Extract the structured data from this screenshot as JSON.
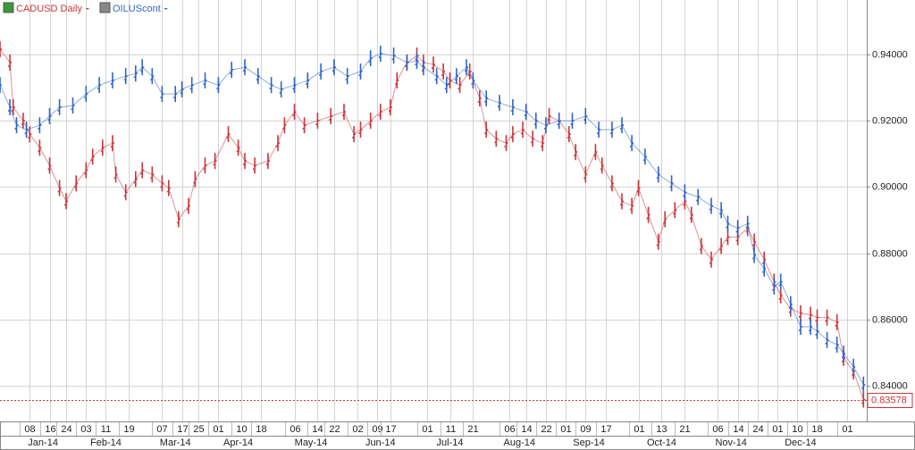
{
  "chart_data": {
    "type": "ohlc",
    "grid": true,
    "xlim": [
      0,
      262
    ],
    "ylim": [
      0.8292,
      0.9565
    ],
    "yticks": [
      {
        "value": 0.94,
        "label": "0.94000"
      },
      {
        "value": 0.92,
        "label": "0.92000"
      },
      {
        "value": 0.9,
        "label": "0.90000"
      },
      {
        "value": 0.88,
        "label": "0.88000"
      },
      {
        "value": 0.86,
        "label": "0.86000"
      },
      {
        "value": 0.84,
        "label": "0.84000"
      }
    ],
    "xticks": [
      {
        "value": 9,
        "label": "08"
      },
      {
        "value": 15,
        "label": "16"
      },
      {
        "value": 20,
        "label": "24"
      },
      {
        "value": 26,
        "label": "03"
      },
      {
        "value": 32,
        "label": "11"
      },
      {
        "value": 39,
        "label": "19"
      },
      {
        "value": 49,
        "label": "07"
      },
      {
        "value": 55,
        "label": "17"
      },
      {
        "value": 60,
        "label": "25"
      },
      {
        "value": 66,
        "label": "01"
      },
      {
        "value": 73,
        "label": "10"
      },
      {
        "value": 79,
        "label": "18"
      },
      {
        "value": 89,
        "label": "06"
      },
      {
        "value": 96,
        "label": "14"
      },
      {
        "value": 101,
        "label": "22"
      },
      {
        "value": 108,
        "label": "02"
      },
      {
        "value": 114,
        "label": "09"
      },
      {
        "value": 118,
        "label": "17"
      },
      {
        "value": 129,
        "label": "01"
      },
      {
        "value": 136,
        "label": "11"
      },
      {
        "value": 143,
        "label": "21"
      },
      {
        "value": 154,
        "label": "06"
      },
      {
        "value": 159,
        "label": "14"
      },
      {
        "value": 165,
        "label": "22"
      },
      {
        "value": 171,
        "label": "01"
      },
      {
        "value": 177,
        "label": "09"
      },
      {
        "value": 183,
        "label": "17"
      },
      {
        "value": 193,
        "label": "01"
      },
      {
        "value": 200,
        "label": "13"
      },
      {
        "value": 207,
        "label": "21"
      },
      {
        "value": 217,
        "label": "06"
      },
      {
        "value": 223,
        "label": "14"
      },
      {
        "value": 229,
        "label": "24"
      },
      {
        "value": 235,
        "label": "01"
      },
      {
        "value": 241,
        "label": "10"
      },
      {
        "value": 247,
        "label": "18"
      },
      {
        "value": 256,
        "label": "01"
      }
    ],
    "month_ticks": [
      {
        "value": 13,
        "label": "Jan-14"
      },
      {
        "value": 32,
        "label": "Feb-14"
      },
      {
        "value": 53,
        "label": "Mar-14"
      },
      {
        "value": 72,
        "label": "Apr-14"
      },
      {
        "value": 94,
        "label": "May-14"
      },
      {
        "value": 115,
        "label": "Jun-14"
      },
      {
        "value": 136,
        "label": "Jul-14"
      },
      {
        "value": 157,
        "label": "Aug-14"
      },
      {
        "value": 178,
        "label": "Sep-14"
      },
      {
        "value": 200,
        "label": "Oct-14"
      },
      {
        "value": 221,
        "label": "Nov-14"
      },
      {
        "value": 242,
        "label": "Dec-14"
      }
    ],
    "last_value": {
      "value": 0.83578,
      "label": "0.83578"
    },
    "series": [
      {
        "name": "CADUSD Daily",
        "color": "#c8363c",
        "x": [
          0,
          3,
          4,
          7,
          9,
          12,
          15,
          18,
          20,
          23,
          26,
          28,
          31,
          34,
          35,
          38,
          41,
          43,
          46,
          49,
          51,
          54,
          57,
          59,
          62,
          65,
          69,
          72,
          74,
          77,
          81,
          84,
          86,
          89,
          92,
          96,
          100,
          104,
          107,
          109,
          112,
          115,
          118,
          120,
          123,
          126,
          128,
          131,
          134,
          136,
          139,
          142,
          145,
          147,
          150,
          153,
          155,
          158,
          161,
          164,
          166,
          169,
          172,
          174,
          177,
          180,
          182,
          185,
          188,
          191,
          193,
          196,
          199,
          201,
          204,
          207,
          209,
          212,
          215,
          218,
          220,
          223,
          226,
          228,
          231,
          234,
          236,
          239,
          242,
          245,
          247,
          250,
          253,
          255,
          258,
          261
        ],
        "values": [
          0.9416,
          0.9376,
          0.9241,
          0.92,
          0.916,
          0.9119,
          0.9065,
          0.8997,
          0.8957,
          0.9011,
          0.9051,
          0.9092,
          0.9119,
          0.9133,
          0.9038,
          0.8984,
          0.9024,
          0.9051,
          0.9038,
          0.9011,
          0.8997,
          0.8903,
          0.8943,
          0.9024,
          0.9065,
          0.9079,
          0.916,
          0.9119,
          0.9079,
          0.9065,
          0.9079,
          0.9133,
          0.9187,
          0.9227,
          0.9187,
          0.92,
          0.9214,
          0.9227,
          0.916,
          0.9173,
          0.92,
          0.9227,
          0.9241,
          0.9322,
          0.9376,
          0.9397,
          0.9376,
          0.937,
          0.9349,
          0.9322,
          0.9308,
          0.9349,
          0.9268,
          0.9173,
          0.9146,
          0.9133,
          0.916,
          0.9173,
          0.9146,
          0.9133,
          0.9214,
          0.92,
          0.916,
          0.9106,
          0.9038,
          0.9106,
          0.9065,
          0.9011,
          0.8957,
          0.8943,
          0.8997,
          0.8916,
          0.8835,
          0.8903,
          0.893,
          0.8957,
          0.8916,
          0.8822,
          0.8781,
          0.8822,
          0.8849,
          0.8849,
          0.8876,
          0.8835,
          0.8781,
          0.8714,
          0.8673,
          0.8633,
          0.8619,
          0.8614,
          0.8606,
          0.8606,
          0.8592,
          0.8484,
          0.8443,
          0.8358
        ]
      },
      {
        "name": "OILUScont",
        "color": "#2f64c4",
        "x": [
          0,
          3,
          5,
          8,
          12,
          15,
          18,
          22,
          26,
          30,
          34,
          38,
          41,
          43,
          46,
          49,
          53,
          55,
          58,
          62,
          66,
          70,
          74,
          78,
          82,
          85,
          89,
          93,
          97,
          101,
          105,
          109,
          112,
          115,
          119,
          123,
          126,
          128,
          132,
          135,
          138,
          141,
          143,
          147,
          151,
          155,
          159,
          162,
          165,
          169,
          173,
          177,
          181,
          185,
          188,
          191,
          195,
          199,
          203,
          207,
          211,
          215,
          218,
          220,
          223,
          226,
          228,
          231,
          234,
          236,
          239,
          242,
          245,
          247,
          250,
          253,
          255,
          258,
          261
        ],
        "values": [
          0.9308,
          0.9241,
          0.9187,
          0.9173,
          0.9187,
          0.9214,
          0.9241,
          0.9246,
          0.9281,
          0.9308,
          0.9322,
          0.9335,
          0.9343,
          0.9362,
          0.9335,
          0.9281,
          0.9281,
          0.9295,
          0.9308,
          0.9322,
          0.9308,
          0.9354,
          0.9362,
          0.9335,
          0.9308,
          0.9295,
          0.9308,
          0.9322,
          0.9349,
          0.9362,
          0.9335,
          0.9349,
          0.9389,
          0.9403,
          0.9397,
          0.9376,
          0.9381,
          0.9362,
          0.9335,
          0.9308,
          0.9335,
          0.9362,
          0.9322,
          0.9268,
          0.9254,
          0.9241,
          0.9227,
          0.92,
          0.9187,
          0.92,
          0.92,
          0.9214,
          0.9173,
          0.9173,
          0.9187,
          0.9133,
          0.9092,
          0.9038,
          0.9011,
          0.8984,
          0.897,
          0.8943,
          0.893,
          0.8889,
          0.8876,
          0.8889,
          0.8795,
          0.8754,
          0.87,
          0.8714,
          0.8646,
          0.8578,
          0.8578,
          0.8565,
          0.8538,
          0.8524,
          0.8497,
          0.8457,
          0.8403
        ]
      }
    ]
  }
}
